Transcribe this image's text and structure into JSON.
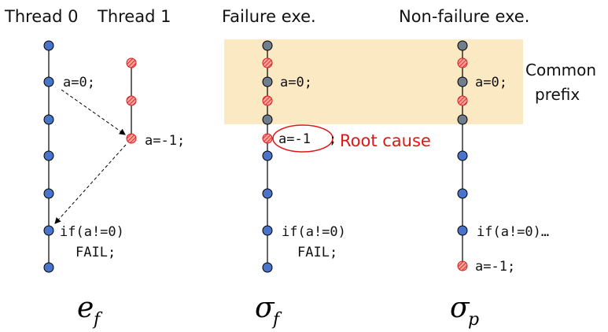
{
  "headers": {
    "thread0": "Thread 0",
    "thread1": "Thread 1",
    "failure": "Failure exe.",
    "nonfailure": "Non-failure exe."
  },
  "code": {
    "t0_assign": "a=0;",
    "t1_assign": "a=-1;",
    "t0_if": "if(a!=0)",
    "t0_fail": "FAIL;",
    "f_assign0": "a=0;",
    "f_assign1": "a=-1",
    "f_if": "if(a!=0)",
    "f_fail": "FAIL;",
    "p_assign0": "a=0;",
    "p_if": "if(a!=0)…",
    "p_assign1": "a=-1;"
  },
  "annotations": {
    "root_cause": "Root cause",
    "common_prefix_line1": "Common",
    "common_prefix_line2": "prefix"
  },
  "symbols": {
    "ef_main": "e",
    "ef_sub": "f",
    "sf_main": "σ",
    "sf_sub": "f",
    "sp_main": "σ",
    "sp_sub": "p"
  },
  "colors": {
    "node_blue": "#4a74c9",
    "node_red": "#ee4444",
    "node_gray": "#6f7d8c",
    "highlight": "#fbe9c3",
    "root_cause": "#e01616"
  }
}
